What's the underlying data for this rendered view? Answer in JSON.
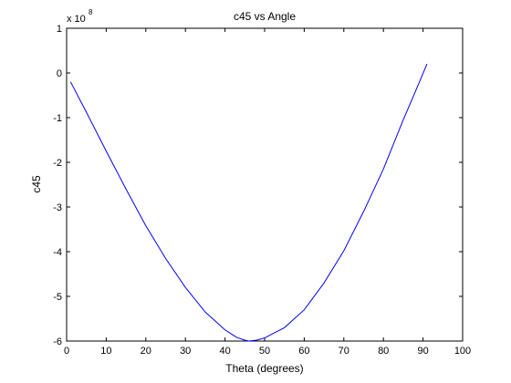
{
  "chart_data": {
    "type": "line",
    "title": "c45 vs Angle",
    "xlabel": "Theta (degrees)",
    "ylabel": "c45",
    "y_multiplier_base": "x 10",
    "y_multiplier_exponent": "8",
    "xlim": [
      0,
      100
    ],
    "ylim": [
      -6,
      1
    ],
    "x_ticks": [
      0,
      10,
      20,
      30,
      40,
      50,
      60,
      70,
      80,
      90,
      100
    ],
    "y_ticks": [
      -6,
      -5,
      -4,
      -3,
      -2,
      -1,
      0,
      1
    ],
    "grid": false,
    "series": [
      {
        "color": "#0000ff",
        "x": [
          1,
          5,
          10,
          15,
          20,
          25,
          30,
          35,
          40,
          43,
          45,
          46,
          48,
          50,
          55,
          60,
          65,
          70,
          75,
          80,
          85,
          88,
          91
        ],
        "y": [
          -0.2,
          -0.88,
          -1.75,
          -2.6,
          -3.42,
          -4.15,
          -4.8,
          -5.35,
          -5.75,
          -5.92,
          -5.98,
          -6.0,
          -5.98,
          -5.93,
          -5.7,
          -5.3,
          -4.7,
          -3.98,
          -3.1,
          -2.15,
          -1.05,
          -0.43,
          0.2
        ]
      }
    ]
  }
}
